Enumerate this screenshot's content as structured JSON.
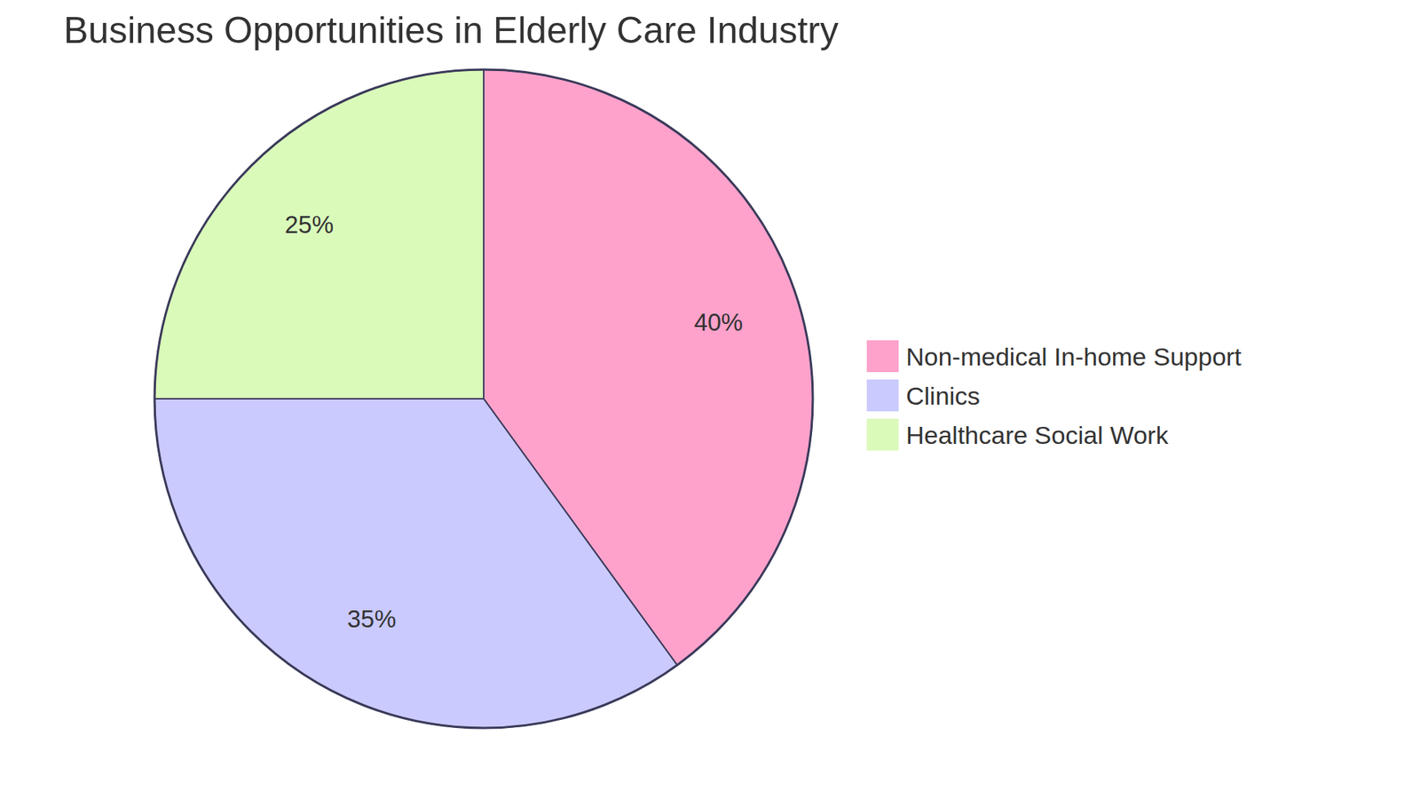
{
  "chart_data": {
    "type": "pie",
    "title": "Business Opportunities in Elderly Care Industry",
    "categories": [
      "Non-medical In-home Support",
      "Clinics",
      "Healthcare Social Work"
    ],
    "values": [
      40,
      35,
      25
    ],
    "value_labels": [
      "40%",
      "35%",
      "25%"
    ],
    "colors": [
      "#fea2cb",
      "#cacaff",
      "#dafaba"
    ],
    "data_labels": true,
    "legend": "right"
  }
}
